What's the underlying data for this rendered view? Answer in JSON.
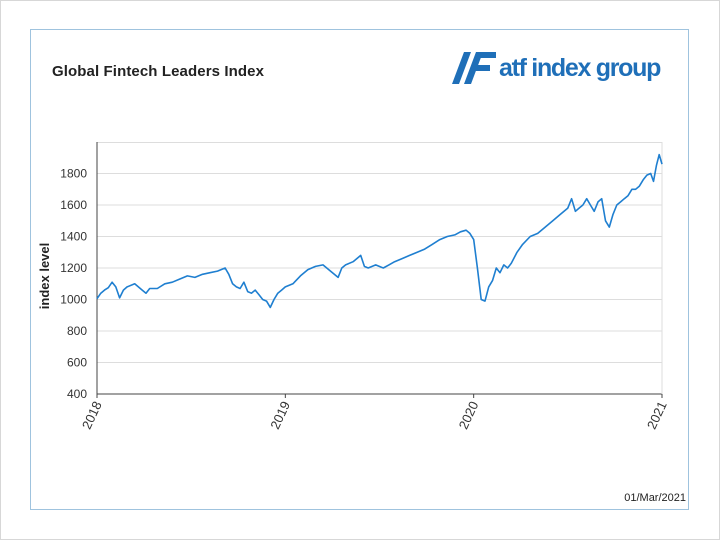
{
  "header": {
    "title": "Global Fintech Leaders Index",
    "brand_name": "atf index group"
  },
  "footer": {
    "date": "01/Mar/2021"
  },
  "colors": {
    "line": "#1f7fd0",
    "grid": "#dddddd",
    "frame": "#9fc3de",
    "brand": "#1f6fb8"
  },
  "chart_data": {
    "type": "line",
    "title": "Global Fintech Leaders Index",
    "xlabel": "",
    "ylabel": "index level",
    "xlim": [
      2018.0,
      2021.0
    ],
    "ylim": [
      400,
      2000
    ],
    "yticks": [
      400,
      600,
      800,
      1000,
      1200,
      1400,
      1600,
      1800
    ],
    "xticks": [
      2018,
      2019,
      2020,
      2021
    ],
    "xtick_labels": [
      "2018",
      "2019",
      "2020",
      "2021"
    ],
    "grid": "horizontal",
    "legend": "none",
    "series": [
      {
        "name": "",
        "x": [
          2018.0,
          2018.02,
          2018.04,
          2018.06,
          2018.08,
          2018.1,
          2018.12,
          2018.14,
          2018.16,
          2018.2,
          2018.24,
          2018.26,
          2018.28,
          2018.32,
          2018.36,
          2018.4,
          2018.44,
          2018.48,
          2018.52,
          2018.56,
          2018.6,
          2018.64,
          2018.68,
          2018.7,
          2018.72,
          2018.74,
          2018.76,
          2018.78,
          2018.8,
          2018.82,
          2018.84,
          2018.86,
          2018.88,
          2018.9,
          2018.92,
          2018.94,
          2018.96,
          2018.98,
          2019.0,
          2019.04,
          2019.08,
          2019.12,
          2019.16,
          2019.2,
          2019.24,
          2019.28,
          2019.3,
          2019.32,
          2019.36,
          2019.4,
          2019.42,
          2019.44,
          2019.48,
          2019.52,
          2019.55,
          2019.58,
          2019.62,
          2019.66,
          2019.7,
          2019.74,
          2019.78,
          2019.82,
          2019.86,
          2019.9,
          2019.93,
          2019.96,
          2019.98,
          2020.0,
          2020.02,
          2020.04,
          2020.06,
          2020.08,
          2020.1,
          2020.12,
          2020.14,
          2020.16,
          2020.18,
          2020.2,
          2020.23,
          2020.26,
          2020.3,
          2020.34,
          2020.38,
          2020.42,
          2020.46,
          2020.5,
          2020.52,
          2020.54,
          2020.56,
          2020.58,
          2020.6,
          2020.62,
          2020.64,
          2020.66,
          2020.68,
          2020.7,
          2020.72,
          2020.74,
          2020.76,
          2020.78,
          2020.8,
          2020.82,
          2020.84,
          2020.86,
          2020.88,
          2020.9,
          2020.92,
          2020.94,
          2020.955,
          2020.97,
          2020.985,
          2021.0
        ],
        "y": [
          1005,
          1040,
          1060,
          1075,
          1110,
          1080,
          1010,
          1060,
          1080,
          1100,
          1060,
          1040,
          1070,
          1070,
          1100,
          1110,
          1130,
          1150,
          1140,
          1160,
          1170,
          1180,
          1200,
          1160,
          1100,
          1080,
          1070,
          1110,
          1050,
          1040,
          1060,
          1030,
          1000,
          990,
          950,
          1000,
          1040,
          1060,
          1080,
          1100,
          1150,
          1190,
          1210,
          1220,
          1180,
          1140,
          1200,
          1220,
          1240,
          1280,
          1210,
          1200,
          1220,
          1200,
          1220,
          1240,
          1260,
          1280,
          1300,
          1320,
          1350,
          1380,
          1400,
          1410,
          1430,
          1440,
          1420,
          1380,
          1200,
          1000,
          990,
          1080,
          1120,
          1200,
          1170,
          1220,
          1200,
          1230,
          1300,
          1350,
          1400,
          1420,
          1460,
          1500,
          1540,
          1580,
          1640,
          1560,
          1580,
          1600,
          1640,
          1600,
          1560,
          1620,
          1640,
          1500,
          1460,
          1540,
          1600,
          1620,
          1640,
          1660,
          1700,
          1700,
          1720,
          1760,
          1790,
          1800,
          1750,
          1850,
          1920,
          1860
        ]
      }
    ]
  }
}
